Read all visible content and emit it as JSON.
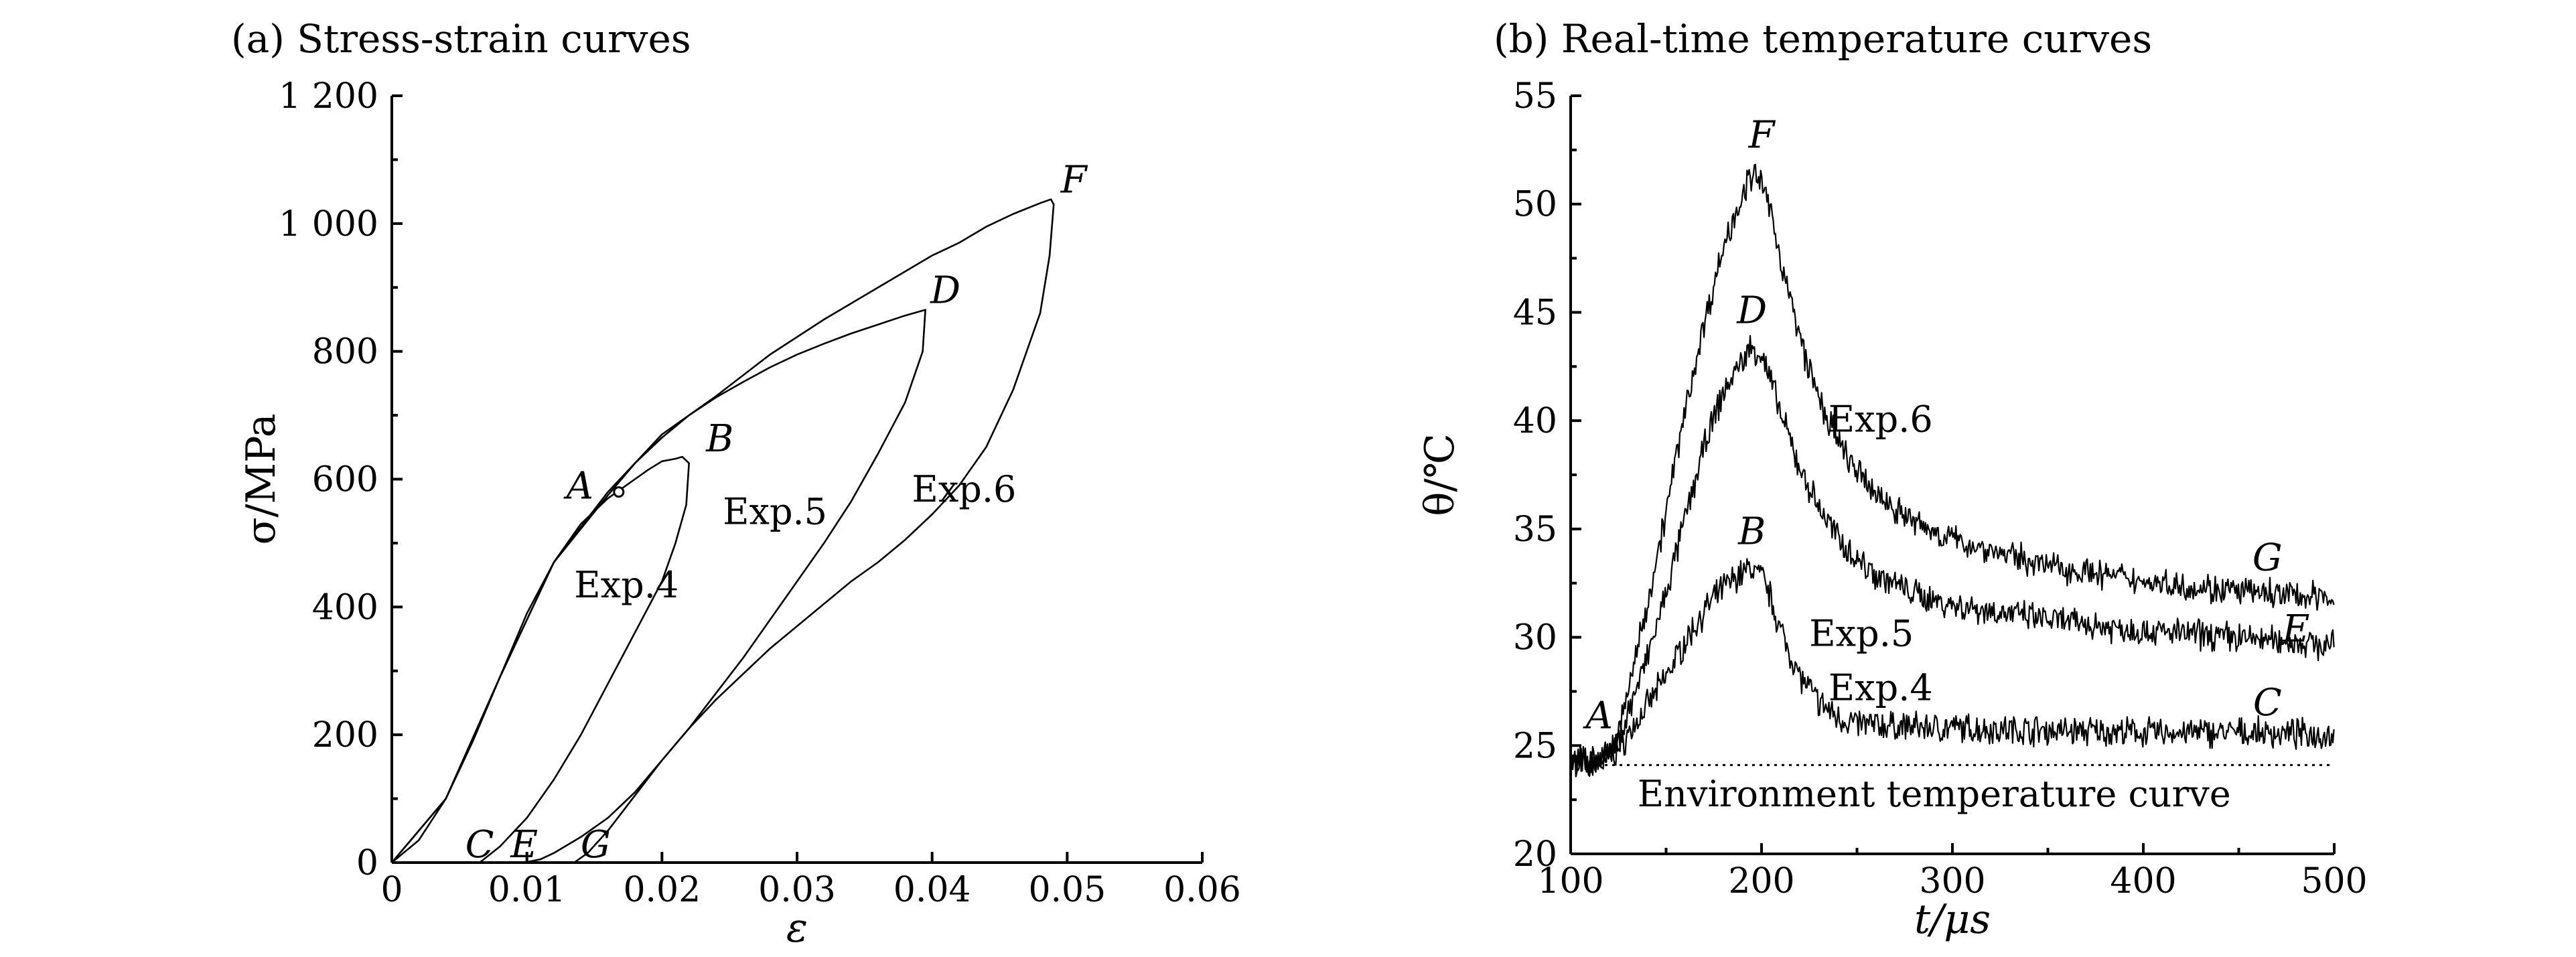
{
  "chart_data": [
    {
      "type": "line",
      "title": "(a) Stress-strain curves",
      "xlabel": "ε",
      "ylabel": "σ/MPa",
      "xlim": [
        0,
        0.06
      ],
      "ylim": [
        0,
        1200
      ],
      "x_ticks": [
        0,
        0.01,
        0.02,
        0.03,
        0.04,
        0.05,
        0.06
      ],
      "x_tick_labels": [
        "0",
        "0.01",
        "0.02",
        "0.03",
        "0.04",
        "0.05",
        "0.06"
      ],
      "y_ticks": [
        0,
        200,
        400,
        600,
        800,
        1000,
        1200
      ],
      "y_tick_labels": [
        "0",
        "200",
        "400",
        "600",
        "800",
        "1 000",
        "1 200"
      ],
      "series": [
        {
          "name": "Exp.4",
          "x": [
            0,
            0.002,
            0.004,
            0.006,
            0.008,
            0.01,
            0.012,
            0.014,
            0.016,
            0.017,
            0.018,
            0.019,
            0.02,
            0.021,
            0.0215,
            0.022,
            0.0218,
            0.021,
            0.02,
            0.018,
            0.016,
            0.014,
            0.012,
            0.01,
            0.008,
            0.0065
          ],
          "y": [
            0,
            35,
            100,
            190,
            290,
            390,
            470,
            530,
            570,
            585,
            600,
            615,
            628,
            632,
            635,
            625,
            560,
            500,
            440,
            360,
            280,
            200,
            130,
            70,
            25,
            0
          ]
        },
        {
          "name": "Exp.5",
          "x": [
            0,
            0.004,
            0.008,
            0.012,
            0.016,
            0.018,
            0.02,
            0.022,
            0.024,
            0.026,
            0.028,
            0.03,
            0.032,
            0.034,
            0.036,
            0.038,
            0.039,
            0.0395,
            0.0393,
            0.038,
            0.036,
            0.034,
            0.032,
            0.03,
            0.028,
            0.026,
            0.024,
            0.022,
            0.02,
            0.018,
            0.016,
            0.014,
            0.012,
            0.011,
            0.0098
          ],
          "y": [
            0,
            100,
            290,
            470,
            575,
            625,
            665,
            700,
            728,
            752,
            775,
            795,
            812,
            828,
            842,
            856,
            862,
            865,
            800,
            720,
            640,
            565,
            500,
            440,
            380,
            320,
            265,
            210,
            160,
            110,
            70,
            40,
            15,
            5,
            0
          ]
        },
        {
          "name": "Exp.6",
          "x": [
            0,
            0.004,
            0.008,
            0.012,
            0.016,
            0.02,
            0.024,
            0.028,
            0.032,
            0.036,
            0.04,
            0.042,
            0.044,
            0.046,
            0.048,
            0.0488,
            0.049,
            0.0487,
            0.048,
            0.046,
            0.044,
            0.042,
            0.04,
            0.038,
            0.036,
            0.034,
            0.032,
            0.03,
            0.028,
            0.026,
            0.024,
            0.022,
            0.02,
            0.018,
            0.016,
            0.0145,
            0.0135
          ],
          "y": [
            0,
            100,
            290,
            470,
            580,
            670,
            730,
            795,
            850,
            900,
            950,
            970,
            995,
            1015,
            1032,
            1038,
            1030,
            950,
            860,
            740,
            650,
            590,
            545,
            505,
            470,
            440,
            405,
            370,
            335,
            295,
            255,
            210,
            160,
            105,
            50,
            15,
            0
          ]
        }
      ],
      "point_labels": [
        {
          "label": "A",
          "x": 0.0168,
          "y": 580
        },
        {
          "label": "B",
          "x": 0.0222,
          "y": 635
        },
        {
          "label": "C",
          "x": 0.0065,
          "y": 0
        },
        {
          "label": "D",
          "x": 0.0395,
          "y": 865
        },
        {
          "label": "E",
          "x": 0.0098,
          "y": 0
        },
        {
          "label": "F",
          "x": 0.049,
          "y": 1038
        },
        {
          "label": "G",
          "x": 0.0135,
          "y": 0
        }
      ],
      "annotations": [
        {
          "text": "Exp.4",
          "x": 0.0135,
          "y": 415
        },
        {
          "text": "Exp.5",
          "x": 0.0245,
          "y": 530
        },
        {
          "text": "Exp.6",
          "x": 0.0385,
          "y": 565
        }
      ]
    },
    {
      "type": "line",
      "title": "(b) Real-time temperature curves",
      "xlabel": "t/μs",
      "ylabel": "θ/℃",
      "xlim": [
        100,
        500
      ],
      "ylim": [
        20,
        55
      ],
      "x_ticks": [
        100,
        200,
        300,
        400,
        500
      ],
      "x_tick_labels": [
        "100",
        "200",
        "300",
        "400",
        "500"
      ],
      "y_ticks": [
        20,
        25,
        30,
        35,
        40,
        45,
        50,
        55
      ],
      "y_tick_labels": [
        "20",
        "25",
        "30",
        "35",
        "40",
        "45",
        "50",
        "55"
      ],
      "environment_temperature": 24.1,
      "series": [
        {
          "name": "Exp.4",
          "x": [
            100,
            110,
            120,
            125,
            130,
            140,
            150,
            160,
            170,
            180,
            190,
            195,
            200,
            205,
            210,
            220,
            230,
            240,
            250,
            270,
            300,
            350,
            400,
            450,
            500
          ],
          "y": [
            24.3,
            24.2,
            24.4,
            24.8,
            25.5,
            26.8,
            28.2,
            29.8,
            31.2,
            32.3,
            33.0,
            33.2,
            32.8,
            31.8,
            30.3,
            28.2,
            27.0,
            26.3,
            26.0,
            25.9,
            25.8,
            25.7,
            25.6,
            25.6,
            25.5
          ]
        },
        {
          "name": "Exp.5",
          "x": [
            100,
            110,
            120,
            125,
            130,
            140,
            150,
            160,
            170,
            180,
            190,
            195,
            200,
            205,
            210,
            220,
            230,
            240,
            250,
            260,
            280,
            300,
            350,
            400,
            450,
            500
          ],
          "y": [
            24.3,
            24.2,
            24.5,
            25.2,
            26.5,
            29.0,
            32.0,
            35.5,
            38.8,
            41.3,
            42.8,
            43.4,
            43.0,
            41.8,
            40.3,
            37.8,
            36.0,
            34.6,
            33.6,
            32.9,
            32.0,
            31.5,
            30.8,
            30.3,
            30.0,
            29.6
          ]
        },
        {
          "name": "Exp.6",
          "x": [
            100,
            110,
            120,
            125,
            130,
            140,
            150,
            160,
            170,
            180,
            190,
            195,
            200,
            205,
            210,
            220,
            230,
            240,
            250,
            260,
            280,
            300,
            350,
            400,
            450,
            500
          ],
          "y": [
            24.3,
            24.2,
            24.6,
            25.5,
            27.5,
            31.5,
            35.8,
            40.5,
            44.5,
            48.0,
            50.5,
            51.3,
            51.0,
            49.5,
            47.5,
            43.8,
            41.0,
            39.0,
            37.6,
            36.6,
            35.3,
            34.5,
            33.3,
            32.6,
            32.1,
            31.8
          ]
        }
      ],
      "point_labels": [
        {
          "label": "A",
          "x": 115,
          "y": 25.8
        },
        {
          "label": "B",
          "x": 195,
          "y": 34.3
        },
        {
          "label": "C",
          "x": 465,
          "y": 26.4
        },
        {
          "label": "D",
          "x": 195,
          "y": 44.5
        },
        {
          "label": "E",
          "x": 480,
          "y": 29.8
        },
        {
          "label": "F",
          "x": 200,
          "y": 52.6
        },
        {
          "label": "G",
          "x": 465,
          "y": 33.1
        }
      ],
      "annotations": [
        {
          "text": "Exp.6",
          "x": 235,
          "y": 39.5
        },
        {
          "text": "Exp.5",
          "x": 225,
          "y": 29.6
        },
        {
          "text": "Exp.4",
          "x": 235,
          "y": 27.1
        },
        {
          "text": "Environment temperature curve",
          "x": 135,
          "y": 22.2
        }
      ]
    }
  ]
}
